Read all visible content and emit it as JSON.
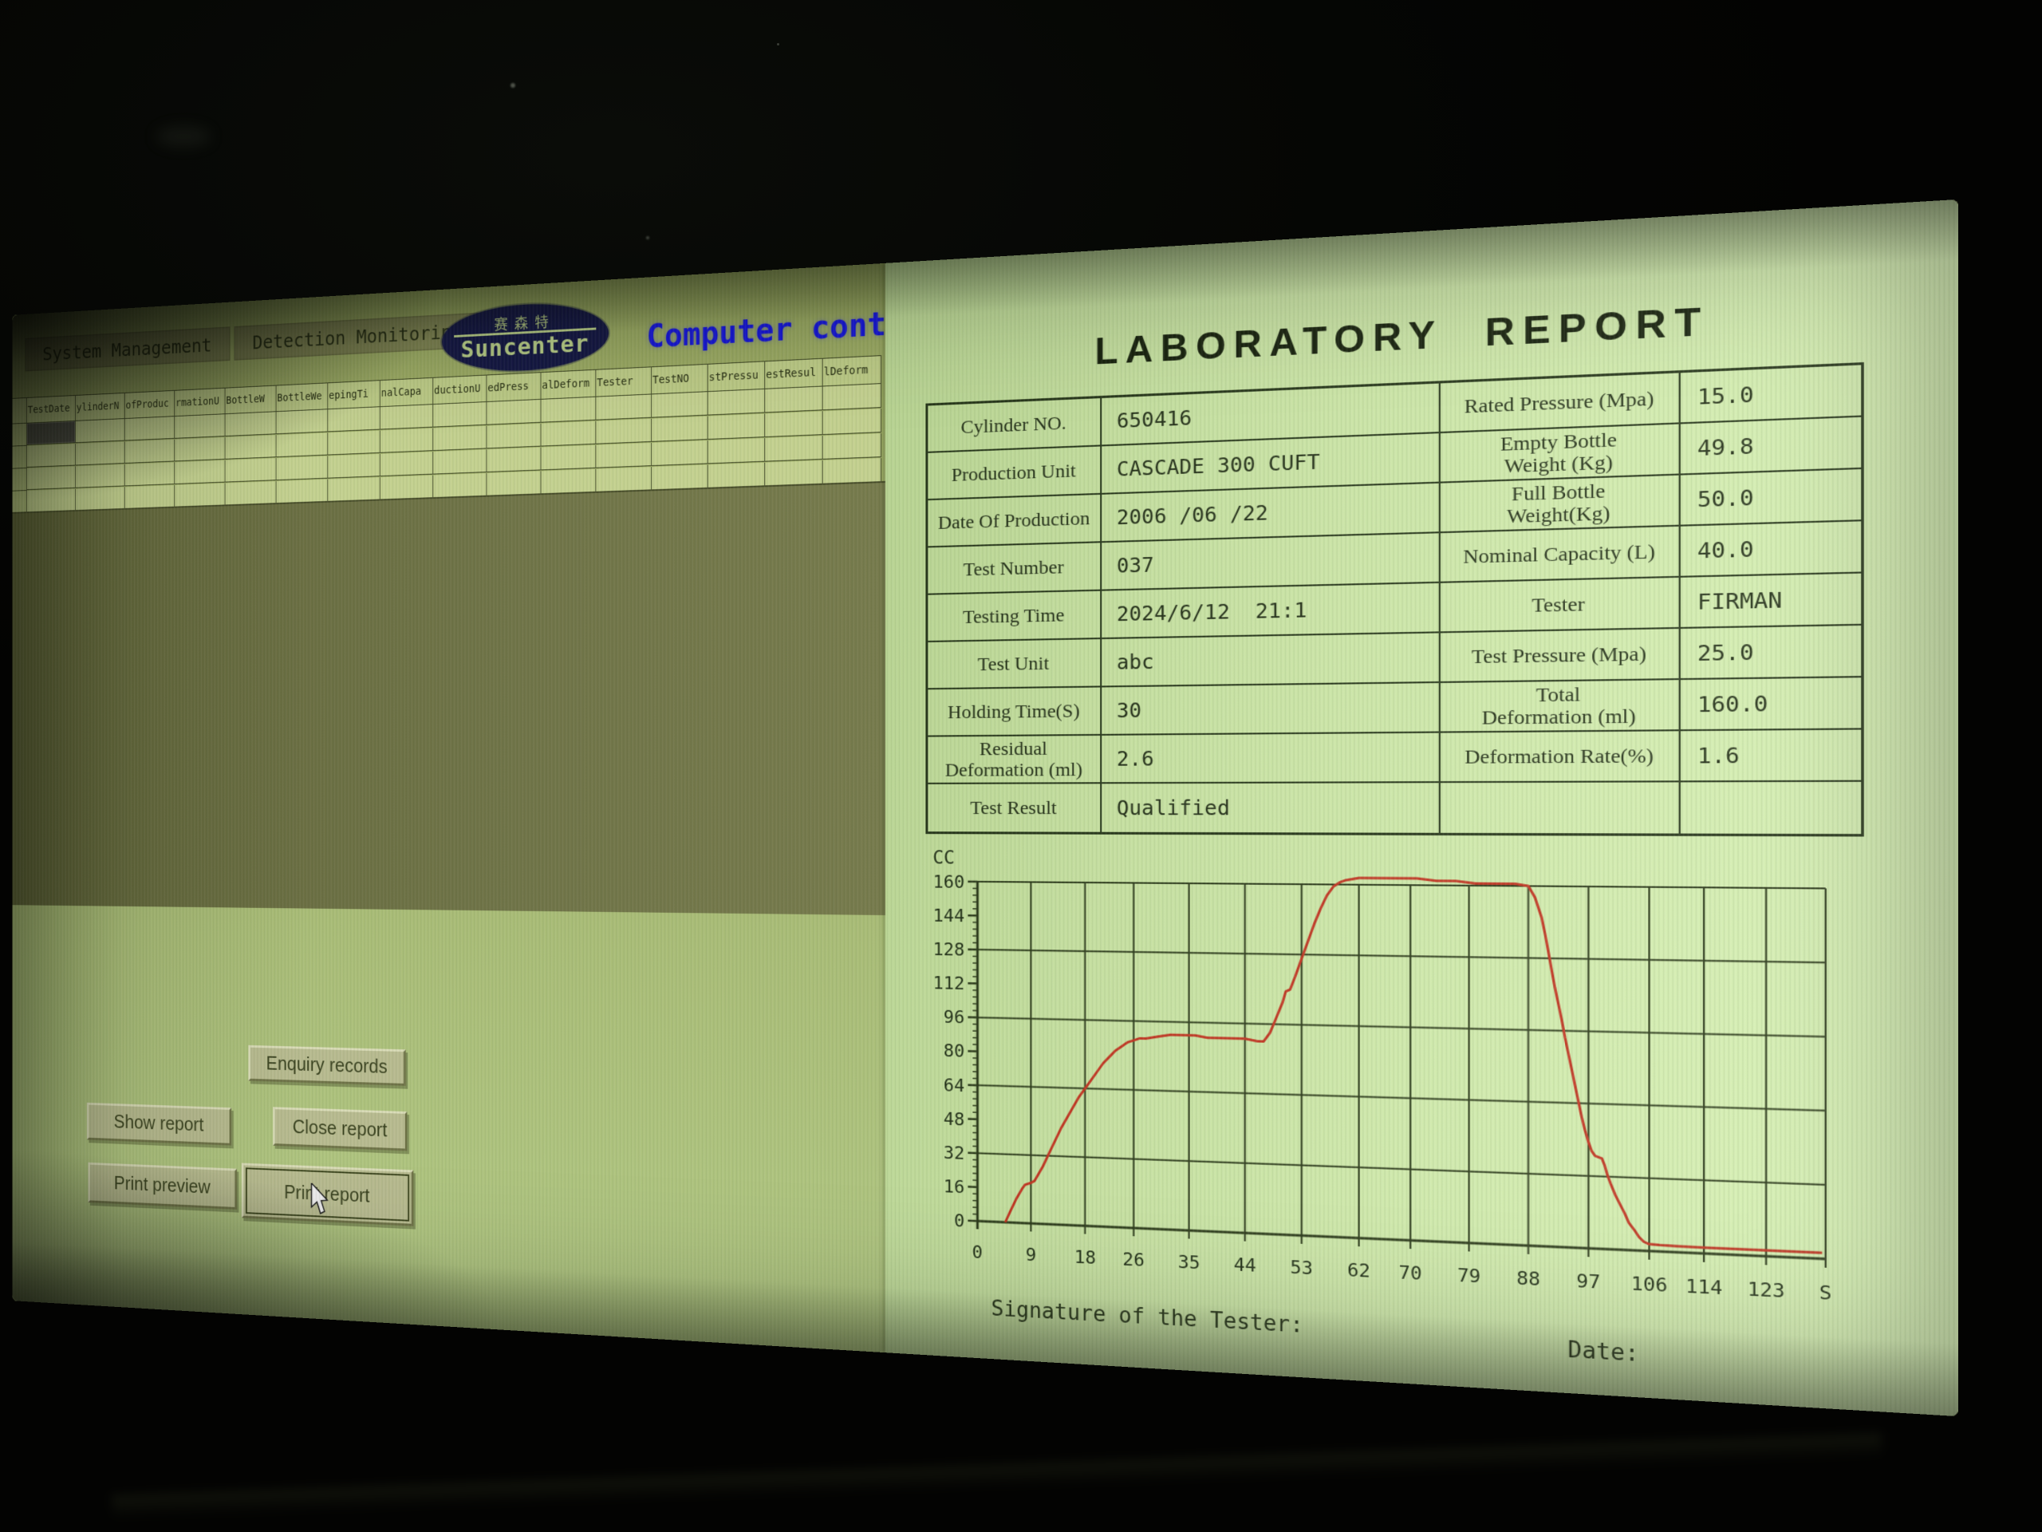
{
  "app": {
    "menu": [
      {
        "label": "System Management"
      },
      {
        "label": "Detection Monitoring"
      }
    ],
    "logo": {
      "cn": "赛森特",
      "brand": "Suncenter"
    },
    "banner": "Computer contro",
    "grid": {
      "columns": [
        "TestDate",
        "ylinderN",
        "ofProduc",
        "rmationU",
        "BottleW",
        "BottleWe",
        "epingTi",
        "nalCapa",
        "ductionU",
        "edPress",
        "alDeform",
        "Tester",
        "TestNO",
        "stPressu",
        "estResul",
        "lDeform"
      ],
      "empty_row_count": 4
    },
    "buttons": {
      "enquiry": "Enquiry records",
      "show": "Show report",
      "close": "Close report",
      "preview": "Print preview",
      "print": "Print report"
    }
  },
  "report": {
    "title": "LABORATORY REPORT",
    "table": {
      "rows": [
        {
          "l1": "Cylinder NO.",
          "v1": "650416",
          "l2": "Rated Pressure (Mpa)",
          "v2": "15.0"
        },
        {
          "l1": "Production Unit",
          "v1": "CASCADE 300 CUFT",
          "l2": "Empty Bottle\nWeight (Kg)",
          "v2": "49.8"
        },
        {
          "l1": "Date Of Production",
          "v1": "2006 /06 /22",
          "l2": "Full Bottle\nWeight(Kg)",
          "v2": "50.0"
        },
        {
          "l1": "Test Number",
          "v1": "037",
          "l2": "Nominal Capacity (L)",
          "v2": "40.0"
        },
        {
          "l1": "Testing Time",
          "v1": "2024/6/12  21:1",
          "l2": "Tester",
          "v2": "FIRMAN"
        },
        {
          "l1": "Test Unit",
          "v1": "abc",
          "l2": "Test Pressure (Mpa)",
          "v2": "25.0"
        },
        {
          "l1": "Holding Time(S)",
          "v1": "30",
          "l2": "Total\nDeformation (ml)",
          "v2": "160.0"
        },
        {
          "l1": "Residual\nDeformation (ml)",
          "v1": "2.6",
          "l2": "Deformation Rate(%)",
          "v2": "1.6"
        },
        {
          "l1": "Test Result",
          "v1": "Qualified",
          "l2": "",
          "v2": ""
        }
      ]
    },
    "signature_label": "Signature of the Tester:",
    "date_label": "Date:"
  },
  "chart_data": {
    "type": "line",
    "title": "",
    "ylabel": "CC",
    "xlabel": "S",
    "ylim": [
      0,
      160
    ],
    "ytick_step": 16,
    "ytick_labels": [
      "0",
      "16",
      "32",
      "48",
      "64",
      "80",
      "96",
      "112",
      "128",
      "144",
      "160"
    ],
    "xtick_labels": [
      "0",
      "9",
      "18",
      "26",
      "35",
      "44",
      "53",
      "62",
      "70",
      "79",
      "88",
      "97",
      "106",
      "114",
      "123",
      "S"
    ],
    "xtick_values": [
      0,
      9,
      18,
      26,
      35,
      44,
      53,
      62,
      70,
      79,
      88,
      97,
      106,
      114,
      123,
      131.5
    ],
    "grid": "on",
    "legend": "none",
    "series": [
      {
        "name": "deformation-curve",
        "color": "#c03522",
        "points": [
          [
            4.7,
            0
          ],
          [
            5.5,
            5
          ],
          [
            6.5,
            11
          ],
          [
            7.5,
            16
          ],
          [
            8,
            18
          ],
          [
            9,
            19
          ],
          [
            9.6,
            20
          ],
          [
            11,
            27
          ],
          [
            12,
            33
          ],
          [
            13,
            39
          ],
          [
            14,
            45
          ],
          [
            15,
            50
          ],
          [
            16,
            55
          ],
          [
            17,
            60
          ],
          [
            18,
            64
          ],
          [
            19,
            68
          ],
          [
            20,
            72
          ],
          [
            21,
            76
          ],
          [
            22,
            79
          ],
          [
            23,
            82
          ],
          [
            24,
            84
          ],
          [
            25,
            86
          ],
          [
            26,
            87
          ],
          [
            27,
            88
          ],
          [
            28,
            88
          ],
          [
            30,
            89
          ],
          [
            32,
            90
          ],
          [
            34,
            90
          ],
          [
            36,
            90
          ],
          [
            38,
            89
          ],
          [
            40,
            89
          ],
          [
            42,
            89
          ],
          [
            44,
            89
          ],
          [
            46,
            88
          ],
          [
            47,
            88
          ],
          [
            48,
            92
          ],
          [
            49,
            99
          ],
          [
            50,
            106
          ],
          [
            50.5,
            111
          ],
          [
            51.2,
            112
          ],
          [
            52,
            118
          ],
          [
            53,
            126
          ],
          [
            54,
            134
          ],
          [
            55,
            142
          ],
          [
            56,
            149
          ],
          [
            57,
            155
          ],
          [
            58,
            159
          ],
          [
            59,
            161
          ],
          [
            60,
            162
          ],
          [
            62,
            163
          ],
          [
            65,
            163
          ],
          [
            68,
            163
          ],
          [
            71,
            163
          ],
          [
            74,
            162
          ],
          [
            77,
            162
          ],
          [
            80,
            161
          ],
          [
            83,
            161
          ],
          [
            86,
            161
          ],
          [
            88,
            160
          ],
          [
            89,
            155
          ],
          [
            90,
            146
          ],
          [
            90.5,
            139
          ],
          [
            91,
            131
          ],
          [
            91.5,
            123
          ],
          [
            92,
            115
          ],
          [
            92.5,
            108
          ],
          [
            93,
            101
          ],
          [
            93.5,
            93
          ],
          [
            94,
            86
          ],
          [
            94.5,
            79
          ],
          [
            95,
            72
          ],
          [
            95.5,
            65
          ],
          [
            96,
            58
          ],
          [
            96.5,
            52
          ],
          [
            97,
            47
          ],
          [
            97.5,
            43
          ],
          [
            98,
            41
          ],
          [
            99,
            40
          ],
          [
            99.4,
            37
          ],
          [
            99.8,
            33
          ],
          [
            100.3,
            29
          ],
          [
            101,
            24
          ],
          [
            101.7,
            20
          ],
          [
            102.4,
            16
          ],
          [
            103,
            12
          ],
          [
            103.8,
            9
          ],
          [
            104.5,
            6
          ],
          [
            105.2,
            4
          ],
          [
            106,
            3
          ],
          [
            107.5,
            2.8
          ],
          [
            110,
            2.7
          ],
          [
            114,
            2.6
          ],
          [
            119,
            2.6
          ],
          [
            125,
            2.6
          ],
          [
            131,
            2.6
          ]
        ]
      }
    ]
  },
  "colors": {
    "accent_blue": "#1717d6",
    "curve_red": "#c03522",
    "panel_green": "#cfe9ab",
    "app_olive": "#a6b872",
    "workspace_olive": "#707448",
    "button_face": "#b8bb90",
    "line_dark": "#26351a",
    "logo_navy": "#151843"
  }
}
